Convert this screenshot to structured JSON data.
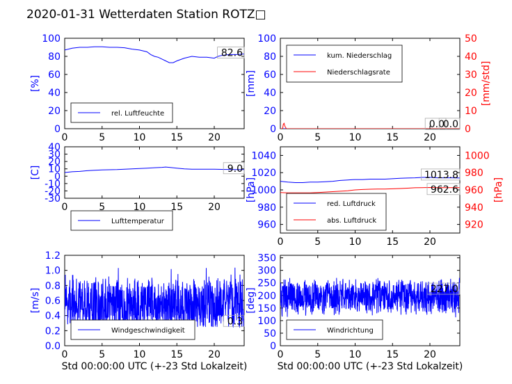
{
  "page": {
    "title": "2020-01-31 Wetterdaten Station ROTZ□"
  },
  "chart_data": [
    {
      "type": "line",
      "panel": "humidity",
      "ylabel": "[%]",
      "ylim": [
        0,
        100
      ],
      "yticks": [
        0,
        20,
        40,
        60,
        80,
        100
      ],
      "xlim": [
        0,
        24
      ],
      "xticks": [
        0,
        5,
        10,
        15,
        20
      ],
      "current_value": "82.6",
      "series": [
        {
          "name": "rel. Luftfeuchte",
          "color": "#0000ff",
          "x": [
            0,
            0.5,
            1,
            2,
            3,
            4,
            5,
            6,
            7,
            8,
            9,
            10,
            11,
            11.5,
            12,
            12.5,
            13,
            13.5,
            14,
            14.5,
            15,
            16,
            17,
            18,
            19,
            20,
            20.5,
            21,
            22,
            23,
            24
          ],
          "y": [
            87,
            88,
            89,
            90,
            90,
            90.5,
            90.5,
            90,
            90,
            89.5,
            88,
            87,
            85,
            82,
            80,
            79,
            77,
            75,
            73,
            73,
            75,
            78,
            80,
            79,
            79,
            78,
            80,
            81,
            82,
            82,
            82.6
          ]
        }
      ]
    },
    {
      "type": "line",
      "panel": "precipitation",
      "ylabel": "[mm]",
      "ylim": [
        0,
        100
      ],
      "yticks": [
        0,
        20,
        40,
        60,
        80,
        100
      ],
      "ylabel_right": "[mm/std]",
      "ylim_right": [
        0,
        50
      ],
      "yticks_right": [
        0,
        10,
        20,
        30,
        40,
        50
      ],
      "xlim": [
        0,
        24
      ],
      "xticks": [
        0,
        5,
        10,
        15,
        20
      ],
      "current_value_left": "0.0",
      "current_value_right": "0.0",
      "series": [
        {
          "name": "kum. Niederschlag",
          "color": "#0000ff",
          "axis": "left",
          "x": [
            0,
            24
          ],
          "y": [
            0,
            0
          ]
        },
        {
          "name": "Niederschlagsrate",
          "color": "#ff0000",
          "axis": "right",
          "x": [
            0,
            0.3,
            0.4,
            0.5,
            0.6,
            0.8,
            1,
            24
          ],
          "y": [
            0,
            0,
            2.5,
            3,
            1.5,
            0,
            0,
            0
          ]
        }
      ]
    },
    {
      "type": "line",
      "panel": "temperature",
      "ylabel": "[C]",
      "ylim": [
        -30,
        40
      ],
      "yticks": [
        -30,
        -20,
        -10,
        0,
        10,
        20,
        30,
        40
      ],
      "xlim": [
        0,
        24
      ],
      "xticks": [
        0,
        5,
        10,
        15,
        20
      ],
      "current_value": "9.0",
      "series": [
        {
          "name": "Lufttemperatur",
          "color": "#0000ff",
          "x": [
            0,
            1,
            2,
            3,
            4,
            5,
            6,
            7,
            8,
            9,
            10,
            11,
            12,
            13,
            13.5,
            14,
            15,
            16,
            17,
            18,
            19,
            20,
            21,
            22,
            23,
            24
          ],
          "y": [
            5,
            6,
            6.5,
            7.5,
            8,
            8.5,
            8.8,
            9,
            9.5,
            10,
            10.5,
            11,
            11.5,
            12,
            12.5,
            12,
            11,
            10,
            9.5,
            9.5,
            9.5,
            9.5,
            9.3,
            9.2,
            9,
            9
          ]
        }
      ]
    },
    {
      "type": "line",
      "panel": "pressure",
      "ylabel": "[hPa]",
      "ylim": [
        950,
        1050
      ],
      "yticks": [
        960,
        980,
        1000,
        1020,
        1040
      ],
      "ylim_right": [
        910,
        1010
      ],
      "yticks_right": [
        920,
        940,
        960,
        980,
        1000
      ],
      "xlim": [
        0,
        24
      ],
      "xticks": [
        0,
        5,
        10,
        15,
        20
      ],
      "current_value_left": "1013.8",
      "current_value_right": "962.6",
      "series": [
        {
          "name": "red. Luftdruck",
          "color": "#0000ff",
          "axis": "left",
          "x": [
            0,
            1,
            2,
            3,
            4,
            5,
            6,
            7,
            8,
            9,
            10,
            11,
            12,
            13,
            14,
            15,
            16,
            17,
            18,
            19,
            20,
            21,
            22,
            23,
            24
          ],
          "y": [
            1010,
            1009,
            1008.5,
            1008.5,
            1009,
            1009,
            1009.5,
            1010,
            1011,
            1011.5,
            1012,
            1012,
            1012.5,
            1012.5,
            1012.5,
            1013,
            1013.5,
            1013.8,
            1014,
            1014.5,
            1014.5,
            1014,
            1014,
            1014,
            1013.8
          ]
        },
        {
          "name": "abs. Luftdruck",
          "color": "#ff0000",
          "axis": "right",
          "x": [
            0,
            1,
            2,
            3,
            4,
            5,
            6,
            7,
            8,
            9,
            10,
            11,
            12,
            13,
            14,
            15,
            16,
            17,
            18,
            19,
            20,
            21,
            22,
            23,
            24
          ],
          "y": [
            957,
            956.5,
            956.5,
            956.5,
            956.5,
            957,
            957.5,
            958,
            958.5,
            959,
            960,
            960.5,
            960.8,
            961,
            961,
            961.3,
            961.6,
            962,
            962.5,
            962.7,
            962.8,
            962.6,
            962.6,
            962.6,
            962.6
          ]
        }
      ]
    },
    {
      "type": "line",
      "panel": "windspeed",
      "ylabel": "[m/s]",
      "ylim": [
        0,
        1.2
      ],
      "yticks": [
        0.0,
        0.2,
        0.4,
        0.6,
        0.8,
        1.0,
        1.2
      ],
      "xlim": [
        0,
        24
      ],
      "xticks": [
        0,
        5,
        10,
        15,
        20
      ],
      "xlabel": "Std 00:00:00 UTC (+-23 Std Lokalzeit)",
      "current_value": "0.3",
      "noise": {
        "center": 0.55,
        "low": 0.25,
        "high": 1.07,
        "seed": 7
      },
      "series": [
        {
          "name": "Windgeschwindigkeit",
          "color": "#0000ff"
        }
      ]
    },
    {
      "type": "line",
      "panel": "winddirection",
      "ylabel": "[deg]",
      "ylim": [
        0,
        360
      ],
      "yticks": [
        0,
        50,
        100,
        150,
        200,
        250,
        300,
        350
      ],
      "xlim": [
        0,
        24
      ],
      "xticks": [
        0,
        5,
        10,
        15,
        20
      ],
      "xlabel": "Std 00:00:00 UTC (+-23 Std Lokalzeit)",
      "current_value": "227.0",
      "noise": {
        "center": 195,
        "low": 110,
        "high": 270,
        "seed": 13
      },
      "series": [
        {
          "name": "Windrichtung",
          "color": "#0000ff"
        }
      ]
    }
  ]
}
